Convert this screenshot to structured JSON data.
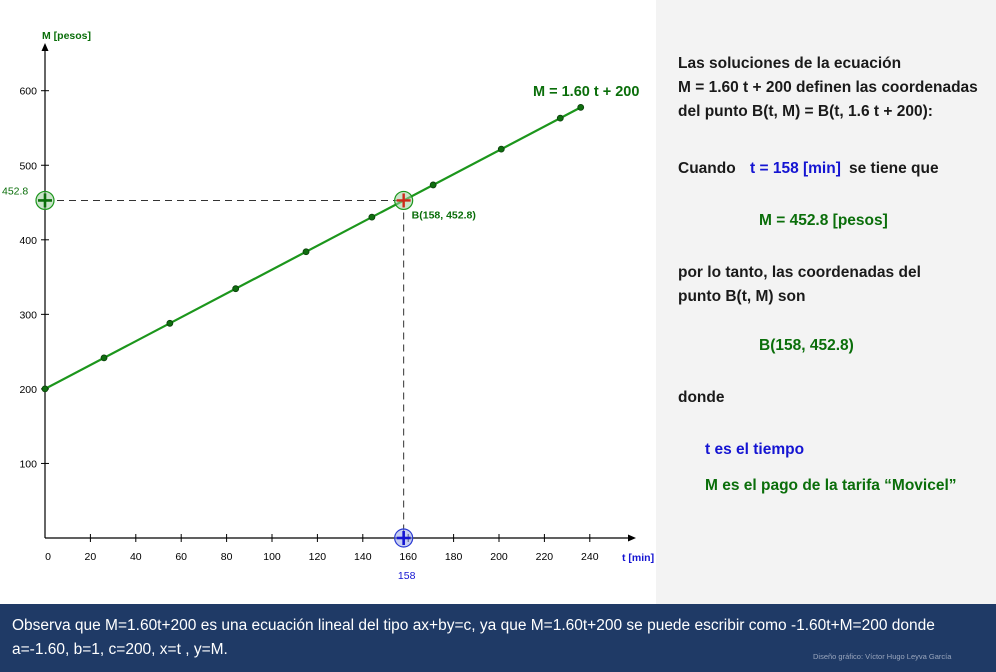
{
  "chart_data": {
    "type": "line",
    "xlabel": "t [min]",
    "ylabel": "M [pesos]",
    "x_ticks": [
      0,
      20,
      40,
      60,
      80,
      100,
      120,
      140,
      160,
      180,
      200,
      220,
      240
    ],
    "y_ticks": [
      100,
      200,
      300,
      400,
      500,
      600
    ],
    "xlim": [
      0,
      260
    ],
    "ylim": [
      0,
      660
    ],
    "equation_label": "M = 1.60 t + 200",
    "series": [
      {
        "color": "#1c961c",
        "x": [
          0,
          236
        ],
        "y": [
          200,
          577.6
        ]
      }
    ],
    "sample_points": {
      "x": [
        0,
        26,
        55,
        84,
        115,
        144,
        171,
        201,
        227,
        236
      ],
      "y": [
        200,
        241.6,
        288,
        334.4,
        384,
        430.4,
        473.6,
        521.6,
        563.2,
        577.6
      ]
    },
    "highlight": {
      "x": 158,
      "y": 452.8,
      "label": "B(158, 452.8)",
      "x_label": "158",
      "y_label": "452.8"
    }
  },
  "panel": {
    "l1": "Las soluciones de la ecuación",
    "l2": "M = 1.60 t + 200 definen las coordenadas",
    "l3": "del punto B(t, M) = B(t, 1.6 t + 200):",
    "cuando": "Cuando",
    "t_value": "t = 158 [min]",
    "se_tiene": "se tiene que",
    "m_value": "M = 452.8 [pesos]",
    "l5": "por lo tanto, las coordenadas del",
    "l6": "punto B(t, M) son",
    "b_value": "B(158, 452.8)",
    "donde": "donde",
    "t_def": "t es el tiempo",
    "m_def": "M es el pago de la tarifa “Movicel”"
  },
  "footer": {
    "text": "Observa que M=1.60t+200  es una ecuación lineal del tipo ax+by=c, ya que  M=1.60t+200 se puede escribir como -1.60t+M=200 donde a=-1.60, b=1, c=200, x=t , y=M.",
    "credit": "Diseño gráfico: Víctor Hugo Leyva García"
  }
}
